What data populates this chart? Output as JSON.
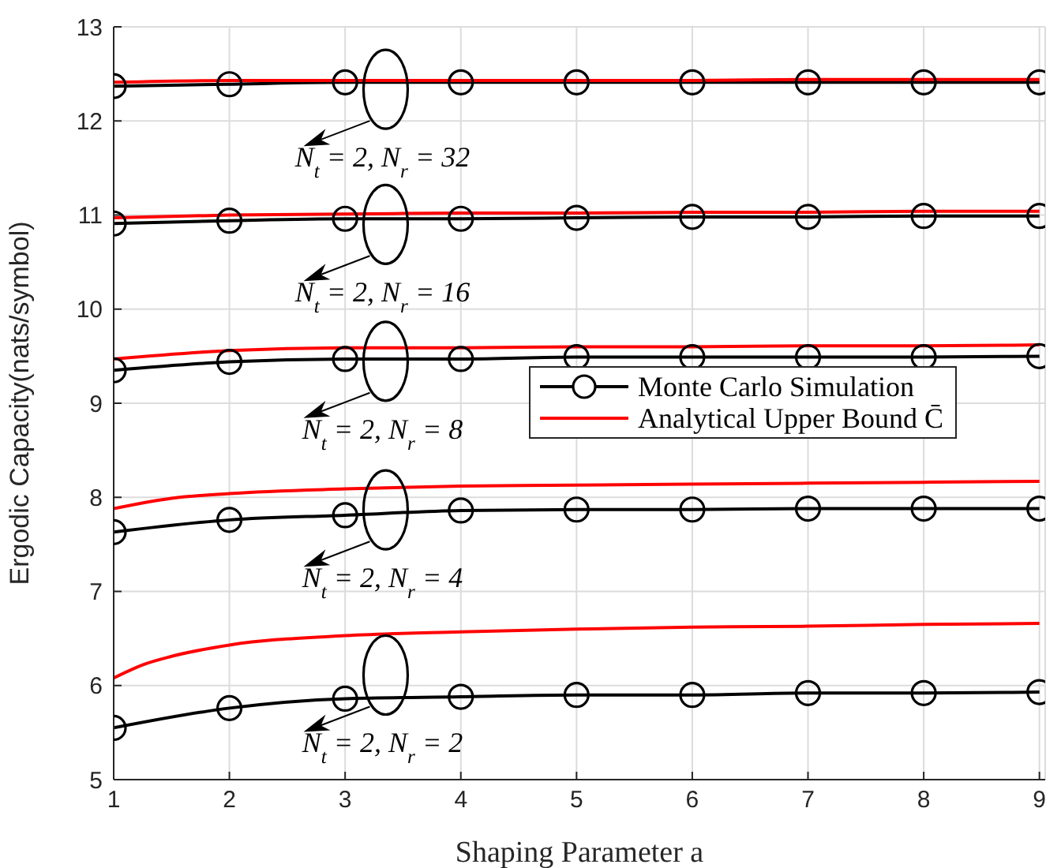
{
  "chart_data": {
    "type": "line",
    "xlabel": "Shaping Parameter a",
    "ylabel": "Ergodic Capacity(nats/symbol)",
    "xlim": [
      1,
      9.05
    ],
    "xticks": [
      1,
      2,
      3,
      4,
      5,
      6,
      7,
      8,
      9
    ],
    "ylim": [
      5,
      13
    ],
    "yticks": [
      5,
      6,
      7,
      8,
      9,
      10,
      11,
      12,
      13
    ],
    "grid": true,
    "legend": "right",
    "marker": "circle",
    "series": [
      {
        "name": "Monte Carlo Simulation",
        "color": "#000000",
        "x": [
          1,
          2,
          3,
          4,
          5,
          6,
          7,
          8,
          9
        ],
        "values": [
          12.37,
          12.39,
          12.41,
          12.41,
          12.41,
          12.41,
          12.41,
          12.41,
          12.41
        ]
      },
      {
        "color": "#000000",
        "x": [
          1,
          2,
          3,
          4,
          5,
          6,
          7,
          8,
          9
        ],
        "values": [
          10.91,
          10.94,
          10.96,
          10.96,
          10.97,
          10.98,
          10.98,
          10.99,
          10.99
        ]
      },
      {
        "color": "#000000",
        "x": [
          1,
          2,
          3,
          4,
          5,
          6,
          7,
          8,
          9
        ],
        "values": [
          9.35,
          9.44,
          9.47,
          9.47,
          9.49,
          9.49,
          9.49,
          9.49,
          9.5
        ]
      },
      {
        "color": "#000000",
        "x": [
          1,
          2,
          3,
          4,
          5,
          6,
          7,
          8,
          9
        ],
        "values": [
          7.63,
          7.76,
          7.81,
          7.86,
          7.87,
          7.87,
          7.88,
          7.88,
          7.88
        ]
      },
      {
        "color": "#000000",
        "x": [
          1,
          2,
          3,
          4,
          5,
          6,
          7,
          8,
          9
        ],
        "values": [
          5.55,
          5.76,
          5.86,
          5.88,
          5.9,
          5.9,
          5.92,
          5.92,
          5.93
        ]
      },
      {
        "name": "Analytical Upper Bound C̄",
        "color": "#ff0000",
        "marker": "none",
        "x": [
          1,
          2,
          3,
          4,
          5,
          6,
          7,
          8,
          9
        ],
        "values": [
          12.41,
          12.43,
          12.43,
          12.43,
          12.43,
          12.43,
          12.44,
          12.44,
          12.44
        ]
      },
      {
        "color": "#ff0000",
        "marker": "none",
        "x": [
          1,
          2,
          3,
          4,
          5,
          6,
          7,
          8,
          9
        ],
        "values": [
          10.97,
          11.0,
          11.01,
          11.02,
          11.02,
          11.03,
          11.03,
          11.04,
          11.04
        ]
      },
      {
        "color": "#ff0000",
        "marker": "none",
        "x": [
          1,
          2,
          3,
          4,
          5,
          6,
          7,
          8,
          9
        ],
        "values": [
          9.47,
          9.56,
          9.59,
          9.59,
          9.6,
          9.6,
          9.61,
          9.61,
          9.62
        ]
      },
      {
        "color": "#ff0000",
        "marker": "none",
        "x": [
          1,
          1.5,
          2,
          3,
          4,
          5,
          6,
          7,
          8,
          9
        ],
        "values": [
          7.88,
          7.99,
          8.04,
          8.09,
          8.12,
          8.13,
          8.14,
          8.15,
          8.16,
          8.17
        ]
      },
      {
        "color": "#ff0000",
        "marker": "none",
        "x": [
          1,
          1.25,
          1.5,
          2,
          3,
          4,
          5,
          6,
          7,
          8,
          9
        ],
        "values": [
          6.08,
          6.22,
          6.31,
          6.43,
          6.53,
          6.57,
          6.6,
          6.62,
          6.63,
          6.65,
          6.66
        ]
      }
    ],
    "annotations": [
      "N$_{t}$ = 2, N$_{r}$ = 32",
      "N$_{t}$ = 2, N$_{r}$ = 16",
      "N$_{t}$ = 2, N$_{r}$ = 8",
      "N$_{t}$ = 2, N$_{r}$ = 4",
      "N$_{t}$ = 2, N$_{r}$ = 2"
    ]
  }
}
